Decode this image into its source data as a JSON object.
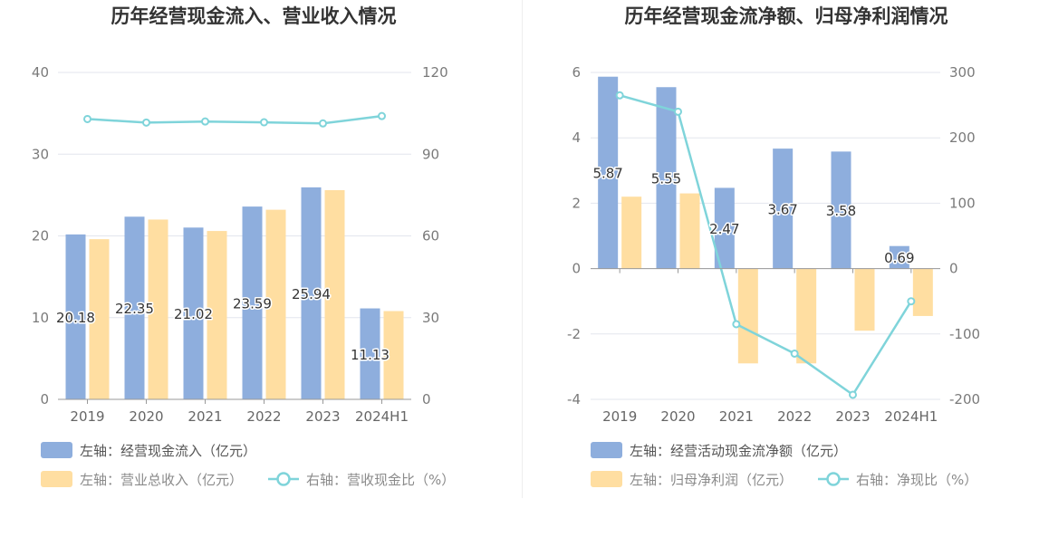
{
  "colors": {
    "bar_primary": "#8eaedd",
    "bar_secondary": "#ffdea1",
    "line": "#7fd4da",
    "grid": "#e3e6ee",
    "axis": "#999999"
  },
  "chart_data": [
    {
      "type": "bar",
      "title": "历年经营现金流入、营业收入情况",
      "categories": [
        "2019",
        "2020",
        "2021",
        "2022",
        "2023",
        "2024H1"
      ],
      "series": [
        {
          "name": "左轴：经营现金流入（亿元）",
          "axis": "left",
          "kind": "bar",
          "values": [
            20.18,
            22.35,
            21.02,
            23.59,
            25.94,
            11.13
          ],
          "labels": [
            "20.18",
            "22.35",
            "21.02",
            "23.59",
            "25.94",
            "11.13"
          ]
        },
        {
          "name": "左轴：营业总收入（亿元）",
          "axis": "left",
          "kind": "bar",
          "values": [
            19.6,
            22.0,
            20.6,
            23.2,
            25.6,
            10.8
          ]
        },
        {
          "name": "右轴：营收现金比（%）",
          "axis": "right",
          "kind": "line",
          "values": [
            102.9,
            101.6,
            102.0,
            101.7,
            101.3,
            104.0
          ]
        }
      ],
      "y_left": {
        "min": 0,
        "max": 40,
        "ticks": [
          "0",
          "10",
          "20",
          "30",
          "40"
        ]
      },
      "y_right": {
        "min": 0,
        "max": 120,
        "ticks": [
          "0",
          "30",
          "60",
          "90",
          "120"
        ]
      },
      "grid": true,
      "legend_position": "bottom-left"
    },
    {
      "type": "bar",
      "title": "历年经营现金流净额、归母净利润情况",
      "categories": [
        "2019",
        "2020",
        "2021",
        "2022",
        "2023",
        "2024H1"
      ],
      "series": [
        {
          "name": "左轴：经营活动现金流净额（亿元）",
          "axis": "left",
          "kind": "bar",
          "values": [
            5.87,
            5.55,
            2.47,
            3.67,
            3.58,
            0.69
          ],
          "labels": [
            "5.87",
            "5.55",
            "2.47",
            "3.67",
            "3.58",
            "0.69"
          ]
        },
        {
          "name": "左轴：归母净利润（亿元）",
          "axis": "left",
          "kind": "bar",
          "values": [
            2.2,
            2.3,
            -2.9,
            -2.9,
            -1.9,
            -1.45
          ]
        },
        {
          "name": "右轴：净现比（%）",
          "axis": "right",
          "kind": "line",
          "values": [
            265,
            240,
            -85,
            -130,
            -193,
            -50
          ]
        }
      ],
      "y_left": {
        "min": -4,
        "max": 6,
        "ticks": [
          "-4",
          "-2",
          "0",
          "2",
          "4",
          "6"
        ]
      },
      "y_right": {
        "min": -200,
        "max": 300,
        "ticks": [
          "-200",
          "-100",
          "0",
          "100",
          "200",
          "300"
        ]
      },
      "grid": true,
      "legend_position": "bottom-left"
    }
  ]
}
